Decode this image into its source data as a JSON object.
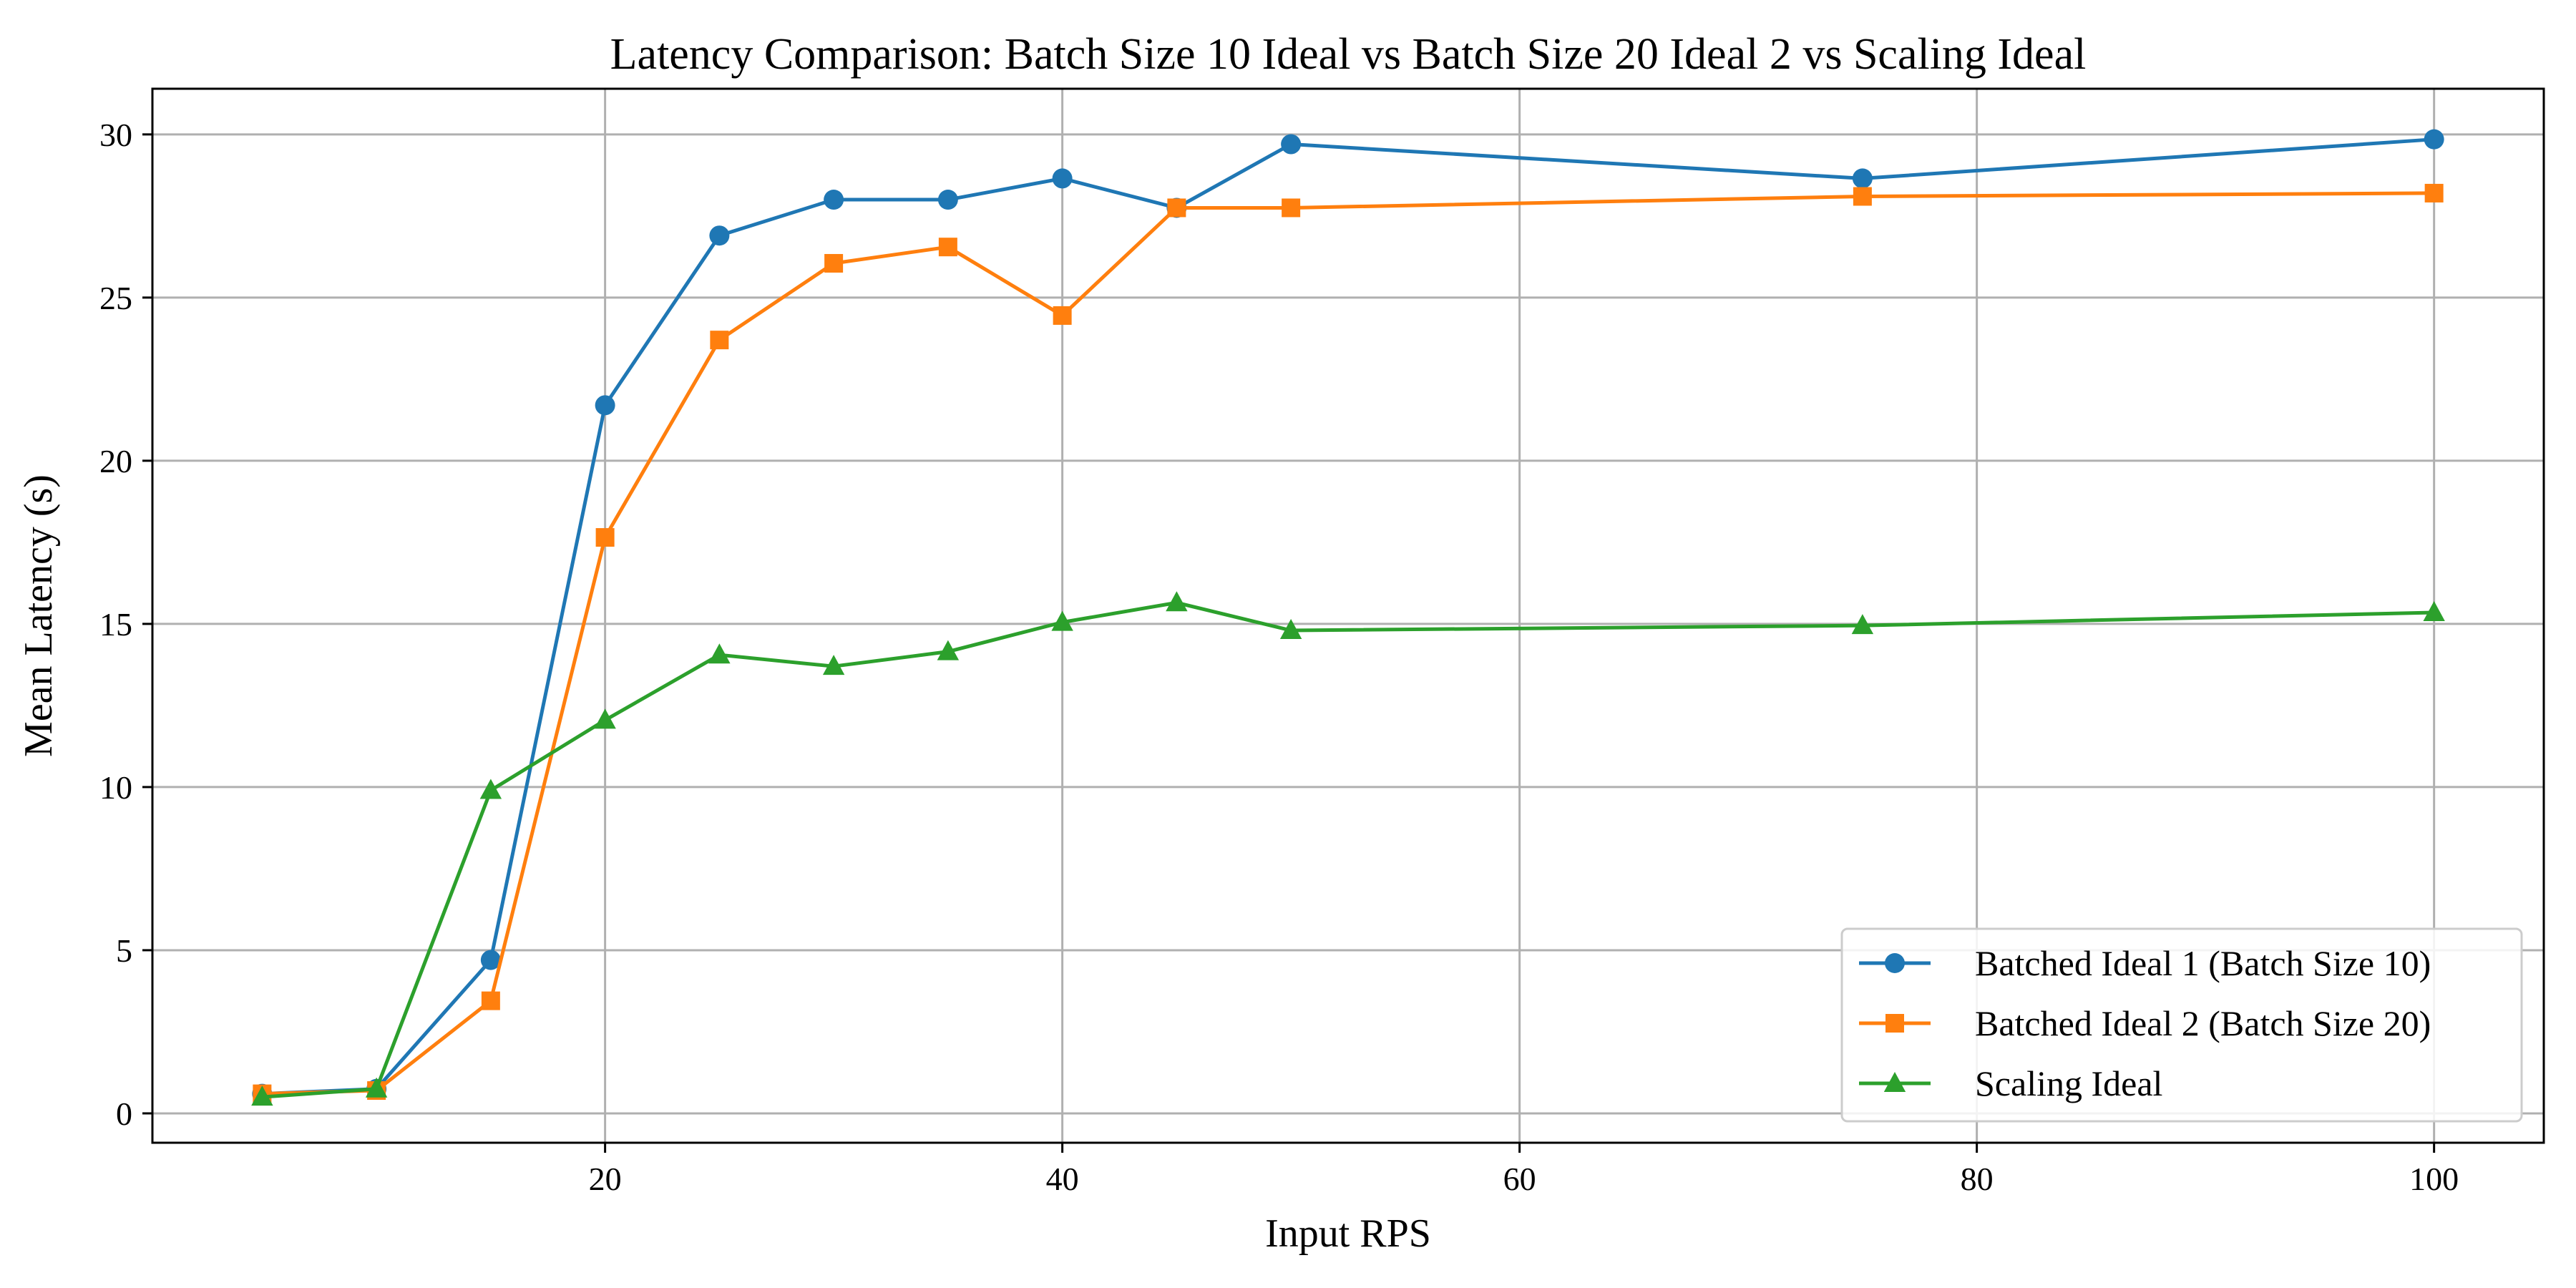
{
  "colors": {
    "grid": "#b0b0b0",
    "axis": "#000000",
    "legend_border": "#cccccc"
  },
  "chart_data": {
    "type": "line",
    "title": "Latency Comparison: Batch Size 10 Ideal vs Batch Size 20 Ideal 2 vs Scaling Ideal",
    "xlabel": "Input RPS",
    "ylabel": "Mean Latency (s)",
    "xlim": [
      0.2,
      104.8
    ],
    "ylim": [
      -0.9,
      31.4
    ],
    "xticks": [
      20,
      40,
      60,
      80,
      100
    ],
    "yticks": [
      0,
      5,
      10,
      15,
      20,
      25,
      30
    ],
    "grid": true,
    "legend_position": "lower-right",
    "x": [
      5,
      10,
      15,
      20,
      25,
      30,
      35,
      40,
      45,
      50,
      75,
      100
    ],
    "series": [
      {
        "name": "Batched Ideal 1 (Batch Size 10)",
        "color": "#1f77b4",
        "marker": "circle",
        "values": [
          0.6,
          0.75,
          4.7,
          21.7,
          26.9,
          28.0,
          28.0,
          28.65,
          27.75,
          29.7,
          28.65,
          29.85
        ]
      },
      {
        "name": "Batched Ideal 2 (Batch Size 20)",
        "color": "#ff7f0e",
        "marker": "square",
        "values": [
          0.6,
          0.7,
          3.45,
          17.65,
          23.7,
          26.05,
          26.55,
          24.45,
          27.75,
          27.75,
          28.1,
          28.2
        ]
      },
      {
        "name": "Scaling Ideal",
        "color": "#2ca02c",
        "marker": "triangle",
        "values": [
          0.5,
          0.75,
          9.9,
          12.05,
          14.05,
          13.7,
          14.15,
          15.05,
          15.65,
          14.8,
          14.95,
          15.35
        ]
      }
    ]
  }
}
